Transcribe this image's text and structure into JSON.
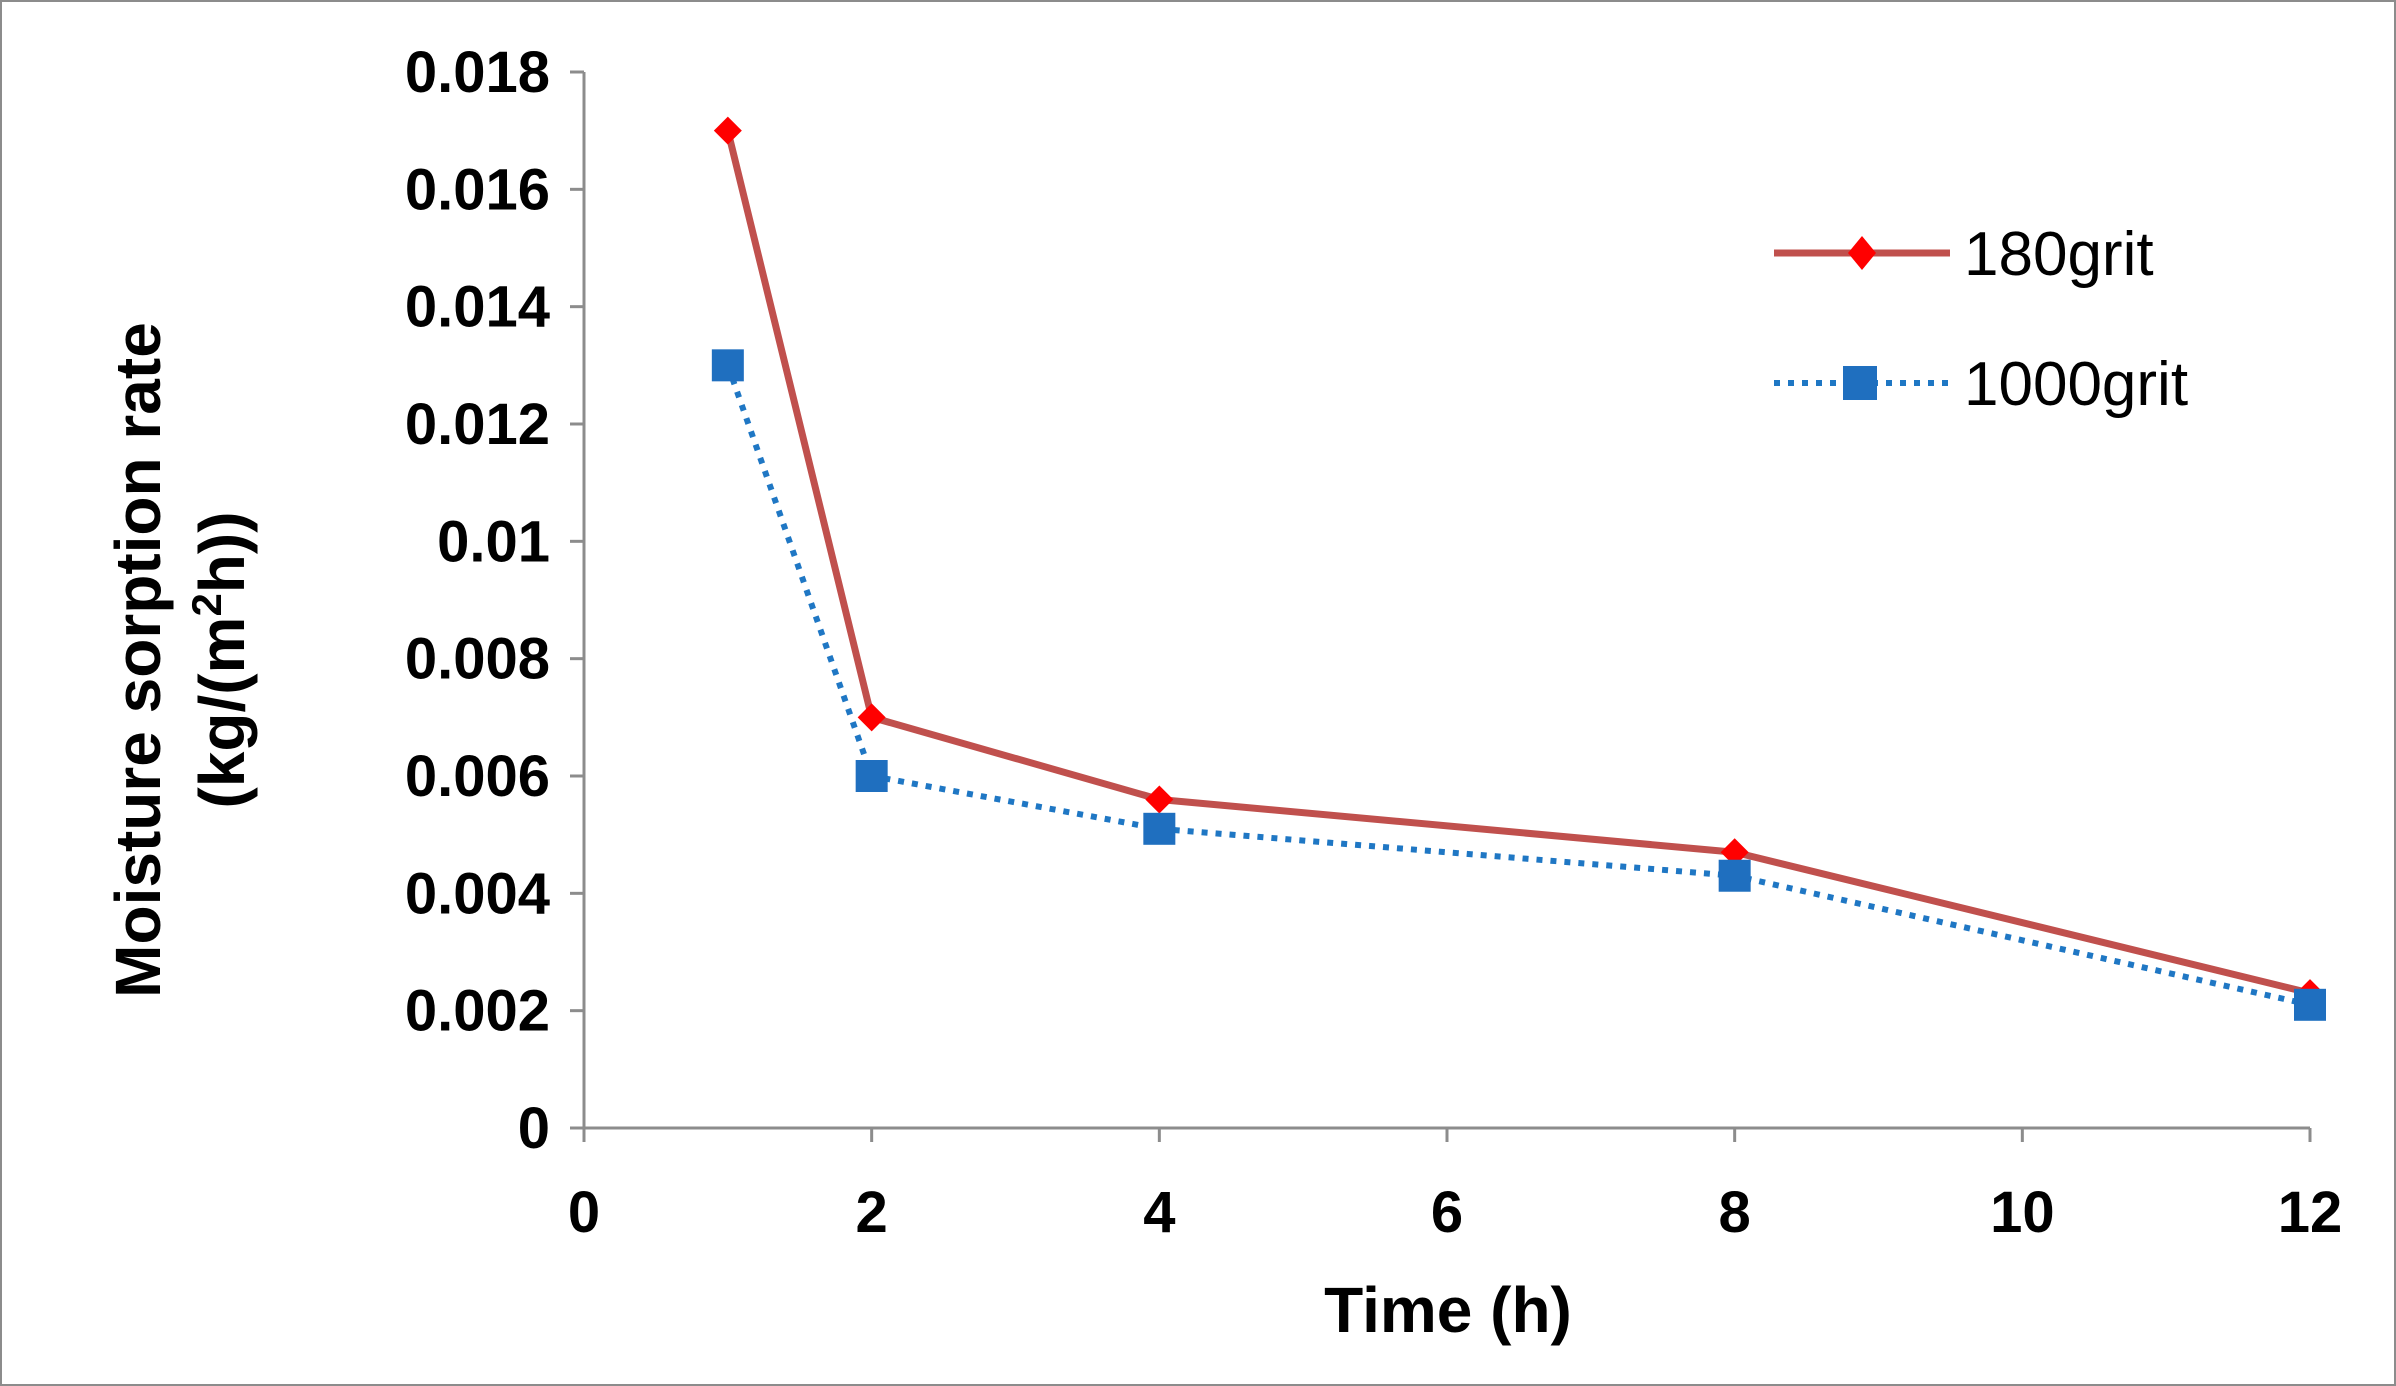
{
  "chart_data": {
    "type": "line",
    "xlabel": "Time  (h)",
    "ylabel_line1": "Moisture sorption rate",
    "ylabel_line2_pre": "(kg/(m",
    "ylabel_line2_sup": "2",
    "ylabel_line2_post": "h))",
    "xlim": [
      0,
      12
    ],
    "ylim": [
      0,
      0.018
    ],
    "xticks": [
      0,
      2,
      4,
      6,
      8,
      10,
      12
    ],
    "xtick_labels": [
      "0",
      "2",
      "4",
      "6",
      "8",
      "10",
      "12"
    ],
    "yticks": [
      0,
      0.002,
      0.004,
      0.006,
      0.008,
      0.01,
      0.012,
      0.014,
      0.016,
      0.018
    ],
    "ytick_labels": [
      "0",
      "0.002",
      "0.004",
      "0.006",
      "0.008",
      "0.01",
      "0.012",
      "0.014",
      "0.016",
      "0.018"
    ],
    "grid": false,
    "legend_position": "top-right",
    "series": [
      {
        "name": "180grit",
        "color": "#c0504d",
        "marker_color": "#ff0000",
        "marker": "diamond",
        "line_style": "solid",
        "x": [
          1,
          2,
          4,
          8,
          12
        ],
        "y": [
          0.017,
          0.007,
          0.0056,
          0.0047,
          0.0023
        ]
      },
      {
        "name": "1000grit",
        "color": "#1f77c4",
        "marker_color": "#1f6fbf",
        "marker": "square",
        "line_style": "dotted",
        "x": [
          1,
          2,
          4,
          8,
          12
        ],
        "y": [
          0.013,
          0.006,
          0.0051,
          0.0043,
          0.0021
        ]
      }
    ]
  }
}
